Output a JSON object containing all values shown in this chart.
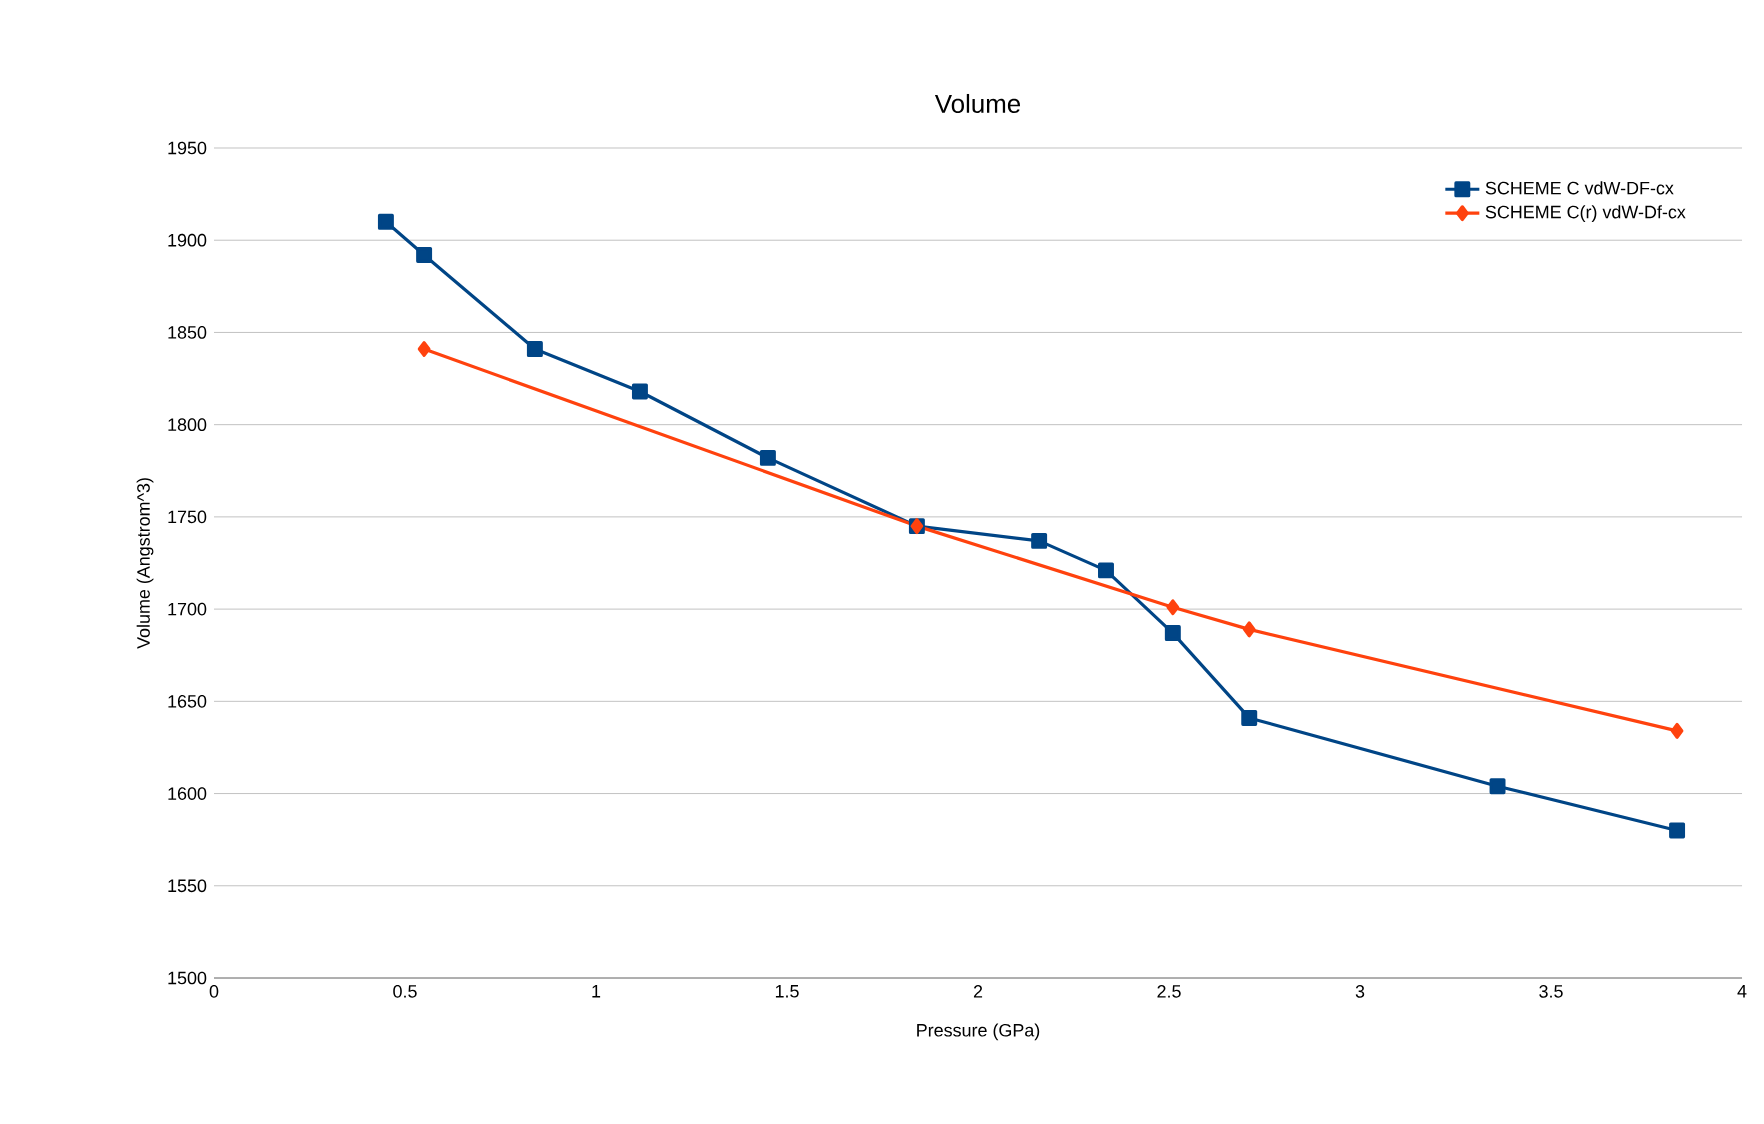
{
  "chart_data": {
    "type": "line",
    "title": "Volume",
    "xlabel": "Pressure (GPa)",
    "ylabel": "Volume (Angstrom^3)",
    "xlim": [
      0,
      4
    ],
    "xticks": [
      0,
      0.5,
      1,
      1.5,
      2,
      2.5,
      3,
      3.5,
      4
    ],
    "ylim": [
      1500,
      1950
    ],
    "yticks": [
      1500,
      1550,
      1600,
      1650,
      1700,
      1750,
      1800,
      1850,
      1900,
      1950
    ],
    "grid": "y",
    "legend": "top right",
    "line_style": "solid",
    "series": [
      {
        "name": "SCHEME C vdW-DF-cx",
        "color": "#004586",
        "marker": "square",
        "x": [
          0.45,
          0.55,
          0.84,
          1.115,
          1.45,
          1.84,
          2.16,
          2.335,
          2.51,
          2.71,
          3.36,
          3.83
        ],
        "values": [
          1910,
          1892,
          1841,
          1818,
          1782,
          1745,
          1737,
          1721,
          1687,
          1641,
          1604,
          1580
        ]
      },
      {
        "name": "SCHEME C(r) vdW-Df-cx",
        "color": "#ff420e",
        "marker": "diamond",
        "x": [
          0.55,
          1.84,
          2.51,
          2.71,
          3.83
        ],
        "values": [
          1841,
          1745,
          1701,
          1689,
          1634
        ]
      }
    ]
  }
}
